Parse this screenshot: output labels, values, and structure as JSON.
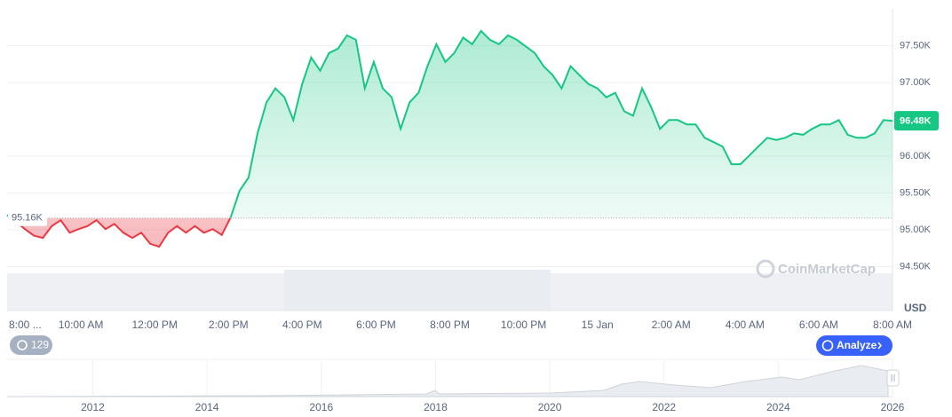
{
  "chart_data": {
    "type": "line",
    "series": [
      {
        "name": "Price",
        "color": "#16c784",
        "values": [
          95200,
          95110,
          95010,
          94920,
          94890,
          95050,
          95130,
          94960,
          95010,
          95050,
          95130,
          95010,
          95080,
          94960,
          94890,
          94960,
          94810,
          94770,
          94960,
          95050,
          94960,
          95050,
          94960,
          95010,
          94930,
          95170,
          95530,
          95710,
          96310,
          96730,
          96920,
          96800,
          96490,
          96980,
          97340,
          97160,
          97400,
          97460,
          97640,
          97580,
          96920,
          97280,
          96920,
          96800,
          96370,
          96730,
          96860,
          97220,
          97520,
          97280,
          97400,
          97610,
          97520,
          97700,
          97580,
          97520,
          97640,
          97580,
          97490,
          97400,
          97220,
          97100,
          96920,
          97220,
          97100,
          96980,
          96920,
          96800,
          96860,
          96610,
          96550,
          96920,
          96670,
          96370,
          96490,
          96490,
          96430,
          96430,
          96250,
          96190,
          96130,
          95890,
          95890,
          96010,
          96130,
          96250,
          96220,
          96250,
          96310,
          96290,
          96370,
          96430,
          96430,
          96490,
          96290,
          96250,
          96250,
          96310,
          96490,
          96480
        ]
      }
    ],
    "below_color": "#ea3943",
    "baseline": {
      "value": 95160,
      "label": "95.16K"
    },
    "current_price": {
      "value": 96480,
      "label": "96.48K"
    },
    "ylim": [
      94000,
      98000
    ],
    "yticks": [
      {
        "value": 94500,
        "label": "94.50K"
      },
      {
        "value": 95000,
        "label": "95.00K"
      },
      {
        "value": 95500,
        "label": "95.50K"
      },
      {
        "value": 96000,
        "label": "96.00K"
      },
      {
        "value": 97000,
        "label": "97.00K"
      },
      {
        "value": 97500,
        "label": "97.50K"
      }
    ],
    "xtick_labels": [
      "8:00 ...",
      "10:00 AM",
      "12:00 PM",
      "2:00 PM",
      "4:00 PM",
      "6:00 PM",
      "8:00 PM",
      "10:00 PM",
      "15 Jan",
      "2:00 AM",
      "4:00 AM",
      "6:00 AM",
      "8:00 AM"
    ],
    "currency": "USD",
    "watermark": "CoinMarketCap",
    "history_count": "129",
    "analyze_button": "Analyze",
    "grid": true,
    "navigator": {
      "xlim": [
        2010.5,
        2026
      ],
      "xticks": [
        2012,
        2014,
        2016,
        2018,
        2020,
        2022,
        2024,
        2026
      ]
    }
  }
}
